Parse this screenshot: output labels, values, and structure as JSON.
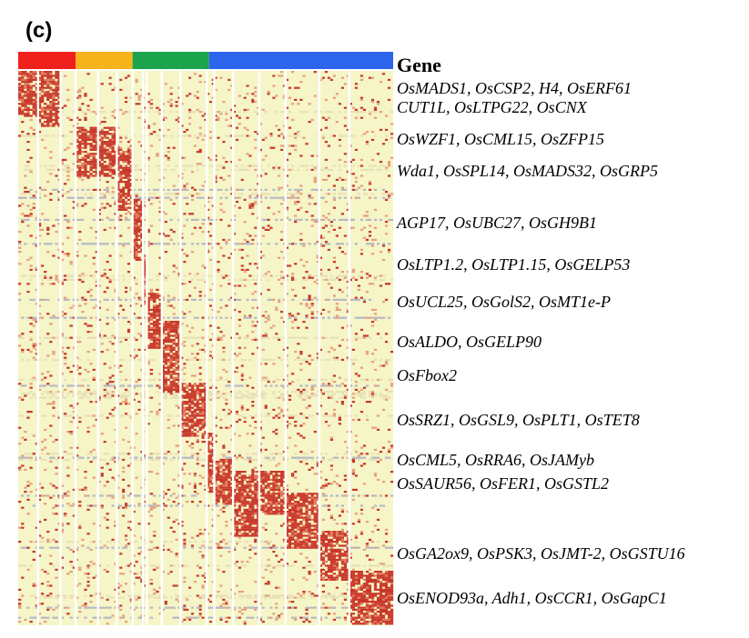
{
  "panel_label": "(c)",
  "chart_data": {
    "type": "heatmap",
    "title": "",
    "legend_title": "Gene",
    "colors": {
      "low": "#f5f5c8",
      "mid": "#e8e0b8",
      "high": "#c8382a",
      "neutral": "#b8b8c4"
    },
    "group_colors": [
      "#f0201c",
      "#f8b41c",
      "#1ca44c",
      "#2c64ec"
    ],
    "column_groups": [
      {
        "color_index": 0,
        "clusters": 3
      },
      {
        "color_index": 1,
        "clusters": 3
      },
      {
        "color_index": 2,
        "clusters": 4
      },
      {
        "color_index": 3,
        "clusters": 8
      }
    ],
    "gene_labels": [
      "OsMADS1, OsCSP2, H4, OsERF61",
      "CUT1L, OsLTPG22, OsCNX",
      "OsWZF1, OsCML15, OsZFP15",
      "Wda1, OsSPL14, OsMADS32, OsGRP5",
      "AGP17, OsUBC27, OsGH9B1",
      "OsLTP1.2, OsLTP1.15, OsGELP53",
      "OsUCL25, OsGolS2, OsMT1e-P",
      "OsALDO, OsGELP90",
      "OsFbox2",
      "OsSRZ1, OsGSL9, OsPLT1, OsTET8",
      "OsCML5, OsRRA6, OsJAMyb",
      "OsSAUR56, OsFER1, OsGSTL2",
      "OsGA2ox9, OsPSK3, OsJMT-2, OsGSTU16",
      "OsENOD93a, Adh1, OsCCR1, OsGapC1"
    ],
    "marker_blocks": [
      {
        "column_cluster": 0,
        "row_start": 0.0,
        "row_end": 0.08
      },
      {
        "column_cluster": 1,
        "row_start": 0.0,
        "row_end": 0.1
      },
      {
        "column_cluster": 3,
        "row_start": 0.1,
        "row_end": 0.19
      },
      {
        "column_cluster": 4,
        "row_start": 0.1,
        "row_end": 0.19
      },
      {
        "column_cluster": 5,
        "row_start": 0.14,
        "row_end": 0.25
      },
      {
        "column_cluster": 6,
        "row_start": 0.23,
        "row_end": 0.34
      },
      {
        "column_cluster": 7,
        "row_start": 0.33,
        "row_end": 0.42
      },
      {
        "column_cluster": 8,
        "row_start": 0.4,
        "row_end": 0.5
      },
      {
        "column_cluster": 9,
        "row_start": 0.45,
        "row_end": 0.58
      },
      {
        "column_cluster": 10,
        "row_start": 0.56,
        "row_end": 0.66
      },
      {
        "column_cluster": 11,
        "row_start": 0.65,
        "row_end": 0.76
      },
      {
        "column_cluster": 12,
        "row_start": 0.7,
        "row_end": 0.78
      },
      {
        "column_cluster": 13,
        "row_start": 0.72,
        "row_end": 0.84
      },
      {
        "column_cluster": 14,
        "row_start": 0.72,
        "row_end": 0.8
      },
      {
        "column_cluster": 15,
        "row_start": 0.76,
        "row_end": 0.86
      },
      {
        "column_cluster": 16,
        "row_start": 0.83,
        "row_end": 0.92
      },
      {
        "column_cluster": 17,
        "row_start": 0.9,
        "row_end": 1.0
      }
    ]
  }
}
